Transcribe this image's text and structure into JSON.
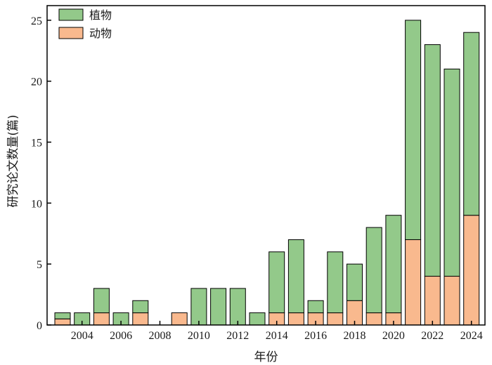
{
  "chart_data": {
    "type": "bar",
    "stacked": true,
    "categories": [
      "2003",
      "2004",
      "2005",
      "2006",
      "2007",
      "2008",
      "2009",
      "2010",
      "2011",
      "2012",
      "2013",
      "2014",
      "2015",
      "2016",
      "2017",
      "2018",
      "2019",
      "2020",
      "2021",
      "2022",
      "2023",
      "2024"
    ],
    "xticks": [
      "2004",
      "2006",
      "2008",
      "2010",
      "2012",
      "2014",
      "2016",
      "2018",
      "2020",
      "2022",
      "2024"
    ],
    "yticks": [
      "0",
      "5",
      "10",
      "15",
      "20",
      "25"
    ],
    "series": [
      {
        "name": "动物",
        "color": "#f9b98e",
        "values": [
          0.5,
          0,
          1,
          0,
          1,
          0,
          1,
          0,
          0,
          0,
          0,
          1,
          1,
          1,
          1,
          2,
          1,
          1,
          7,
          4,
          4,
          9
        ]
      },
      {
        "name": "植物",
        "color": "#93c98a",
        "values": [
          0.5,
          1,
          2,
          1,
          1,
          0,
          0,
          3,
          3,
          3,
          1,
          5,
          6,
          1,
          5,
          3,
          7,
          8,
          18,
          19,
          17,
          15
        ]
      }
    ],
    "legend_order": [
      "植物",
      "动物"
    ],
    "legend_position": "top-left",
    "xlabel": "年份",
    "ylabel": "研究论文数量(篇)",
    "ylim": [
      0,
      26.2
    ],
    "grid": false
  }
}
